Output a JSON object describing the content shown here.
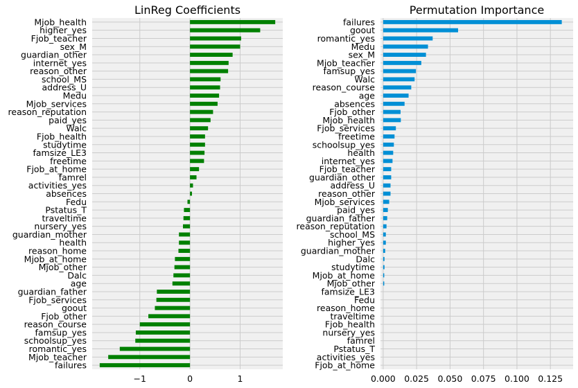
{
  "chart_data": [
    {
      "type": "bar",
      "orientation": "horizontal",
      "title": "LinReg Coefficients",
      "color": "#008000",
      "xlim": [
        -1.95,
        1.85
      ],
      "xticks": [
        -1,
        0,
        1
      ],
      "tick_labels": [
        "−1",
        "0",
        "1"
      ],
      "grid": true,
      "categories": [
        "Mjob_health",
        "higher_yes",
        "Fjob_teacher",
        "sex_M",
        "guardian_other",
        "internet_yes",
        "reason_other",
        "school_MS",
        "address_U",
        "Medu",
        "Mjob_services",
        "reason_reputation",
        "paid_yes",
        "Walc",
        "Fjob_health",
        "studytime",
        "famsize_LE3",
        "freetime",
        "Fjob_at_home",
        "famrel",
        "activities_yes",
        "absences",
        "Fedu",
        "Pstatus_T",
        "traveltime",
        "nursery_yes",
        "guardian_mother",
        "health",
        "reason_home",
        "Mjob_at_home",
        "Mjob_other",
        "Dalc",
        "age",
        "guardian_father",
        "Fjob_services",
        "goout",
        "Fjob_other",
        "reason_course",
        "famsup_yes",
        "schoolsup_yes",
        "romantic_yes",
        "Mjob_teacher",
        "failures"
      ],
      "values": [
        1.7,
        1.4,
        1.02,
        1.0,
        0.85,
        0.77,
        0.76,
        0.61,
        0.6,
        0.58,
        0.55,
        0.46,
        0.41,
        0.36,
        0.3,
        0.3,
        0.29,
        0.28,
        0.18,
        0.13,
        0.06,
        0.04,
        -0.05,
        -0.12,
        -0.13,
        -0.14,
        -0.22,
        -0.22,
        -0.23,
        -0.3,
        -0.31,
        -0.33,
        -0.35,
        -0.66,
        -0.67,
        -0.7,
        -0.83,
        -1.0,
        -1.08,
        -1.09,
        -1.4,
        -1.63,
        -1.8
      ]
    },
    {
      "type": "bar",
      "orientation": "horizontal",
      "title": "Permutation Importance",
      "color": "#008fd5",
      "xlim": [
        -0.002,
        0.142
      ],
      "xticks": [
        0,
        0.025,
        0.05,
        0.075,
        0.1,
        0.125
      ],
      "tick_labels": [
        "0.000",
        "0.025",
        "0.050",
        "0.075",
        "0.100",
        "0.125"
      ],
      "grid": true,
      "categories": [
        "failures",
        "goout",
        "romantic_yes",
        "Medu",
        "sex_M",
        "Mjob_teacher",
        "famsup_yes",
        "Walc",
        "reason_course",
        "age",
        "absences",
        "Fjob_other",
        "Mjob_health",
        "Fjob_services",
        "freetime",
        "schoolsup_yes",
        "health",
        "internet_yes",
        "Fjob_teacher",
        "guardian_other",
        "address_U",
        "reason_other",
        "Mjob_services",
        "paid_yes",
        "guardian_father",
        "reason_reputation",
        "school_MS",
        "higher_yes",
        "guardian_mother",
        "Dalc",
        "studytime",
        "Mjob_at_home",
        "Mjob_other",
        "famsize_LE3",
        "Fedu",
        "reason_home",
        "traveltime",
        "Fjob_health",
        "nursery_yes",
        "famrel",
        "Pstatus_T",
        "activities_yes",
        "Fjob_at_home"
      ],
      "values": [
        0.1335,
        0.056,
        0.037,
        0.0335,
        0.032,
        0.0285,
        0.0245,
        0.0235,
        0.021,
        0.019,
        0.016,
        0.013,
        0.0132,
        0.0095,
        0.0085,
        0.008,
        0.0075,
        0.007,
        0.006,
        0.006,
        0.0055,
        0.0055,
        0.0045,
        0.0035,
        0.003,
        0.0025,
        0.002,
        0.002,
        0.0015,
        0.001,
        0.001,
        0.0008,
        0.0008,
        0.0,
        0.0,
        0.0,
        0.0,
        0.0,
        0.0,
        0.0,
        0.0,
        0.0,
        0.0
      ]
    }
  ]
}
